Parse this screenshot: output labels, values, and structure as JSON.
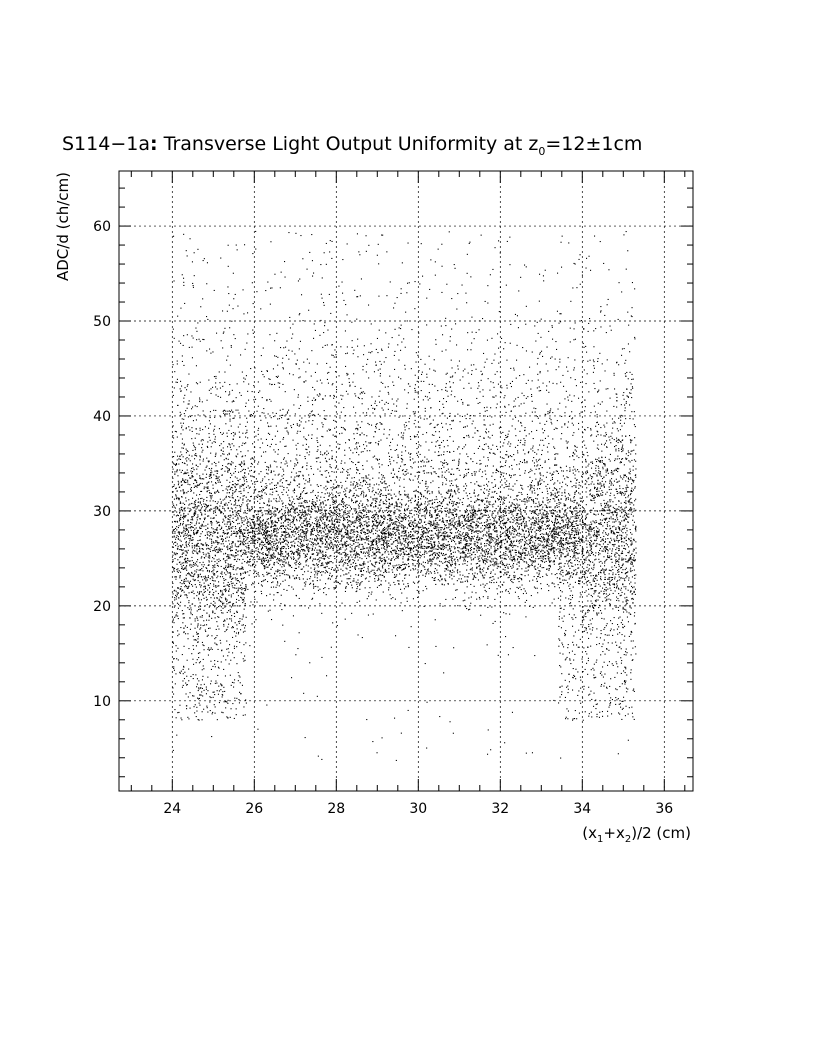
{
  "chart_data": {
    "type": "scatter",
    "title": {
      "main": "S114−1a",
      "colon": ":",
      "rest": " Transverse Light Output Uniformity at z",
      "sub": "0",
      "tail": "=12±1cm"
    },
    "xlabel": {
      "p1": "(x",
      "s1": "1",
      "p2": "+x",
      "s2": "2",
      "p3": ")/2 (cm)"
    },
    "ylabel": "ADC/d (ch/cm)",
    "xlim": [
      22.7,
      36.7
    ],
    "ylim": [
      0.5,
      65.8
    ],
    "xticks": [
      "24",
      "26",
      "28",
      "30",
      "32",
      "34",
      "36"
    ],
    "yticks": [
      "10",
      "20",
      "30",
      "40",
      "50",
      "60"
    ],
    "grid": true,
    "point_color": "#000000",
    "distribution": {
      "x_range": [
        24.0,
        35.3
      ],
      "core_y_range": [
        22,
        33
      ],
      "core_y_center": 27.5,
      "max_y": 59.5,
      "min_y": 3.5
    }
  }
}
